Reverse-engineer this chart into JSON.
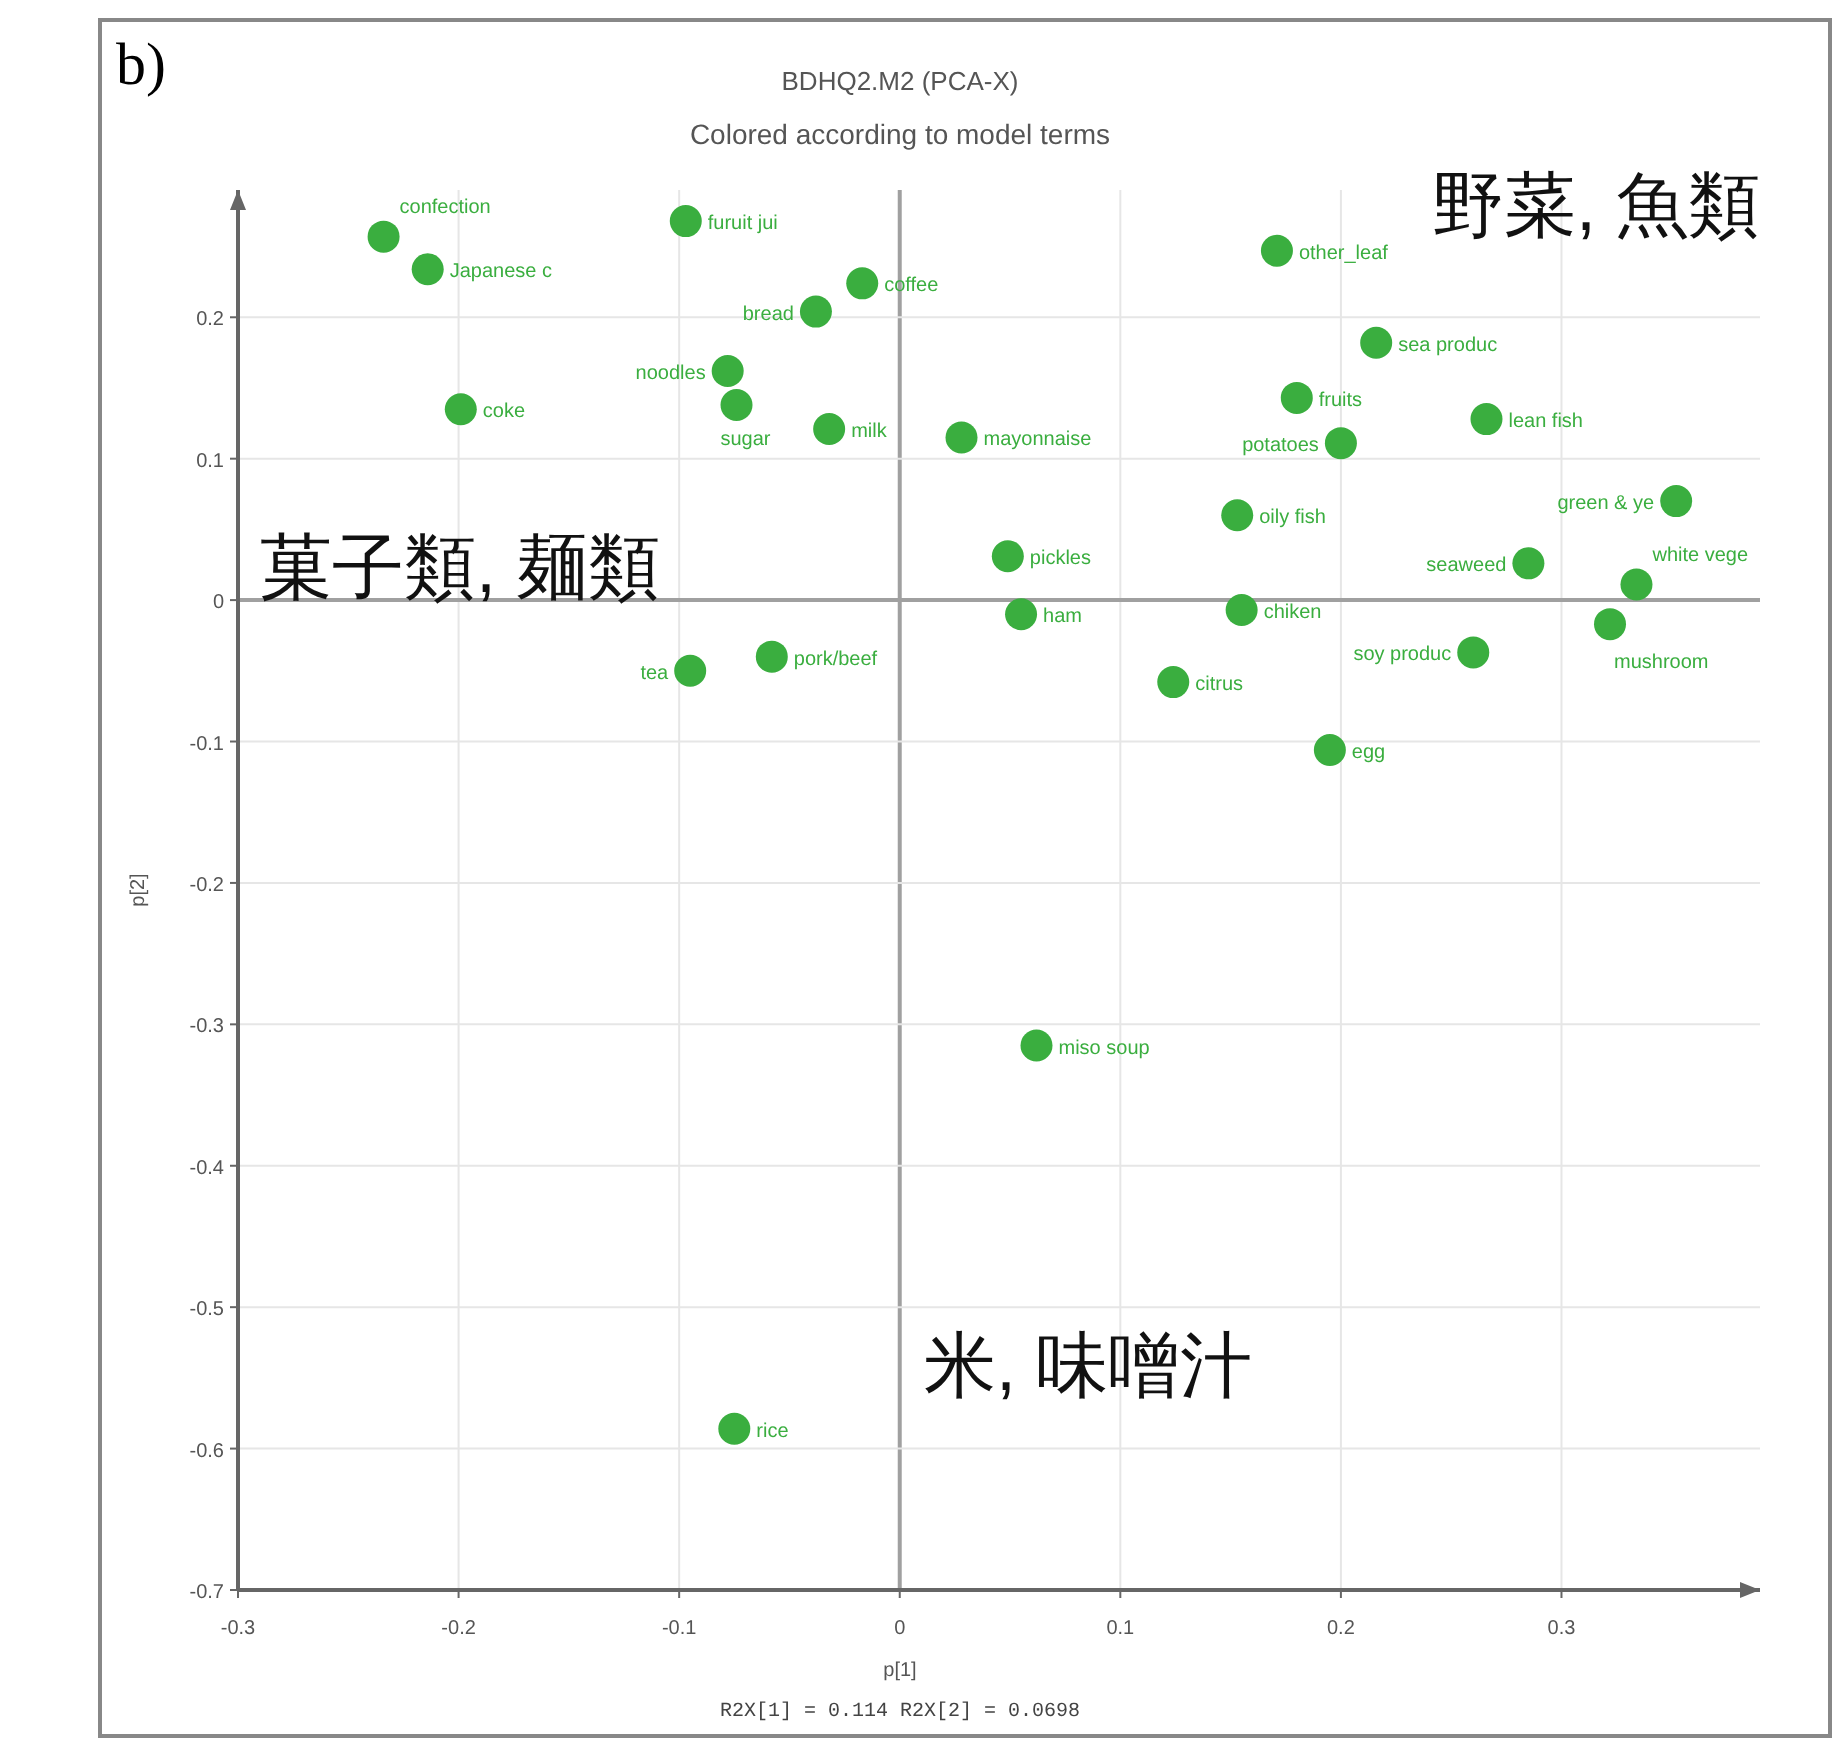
{
  "chart_data": {
    "type": "scatter",
    "title": "BDHQ2.M2 (PCA-X)",
    "subtitle": "Colored according to model terms",
    "xlabel": "p[1]",
    "ylabel": "p[2]",
    "x": [
      -0.234,
      -0.214,
      -0.097,
      -0.017,
      -0.038,
      -0.078,
      -0.074,
      -0.199,
      -0.032,
      0.028,
      0.171,
      0.216,
      0.18,
      0.2,
      0.266,
      0.352,
      0.153,
      0.285,
      0.334,
      0.049,
      0.055,
      0.155,
      0.322,
      0.26,
      0.124,
      0.195,
      -0.095,
      -0.058,
      0.062,
      -0.075
    ],
    "values": [
      0.257,
      0.234,
      0.268,
      0.224,
      0.204,
      0.162,
      0.138,
      0.135,
      0.121,
      0.115,
      0.247,
      0.182,
      0.143,
      0.111,
      0.128,
      0.07,
      0.06,
      0.026,
      0.011,
      0.031,
      -0.01,
      -0.007,
      -0.017,
      -0.037,
      -0.058,
      -0.106,
      -0.05,
      -0.04,
      -0.315,
      -0.586
    ],
    "color": "#3aae3f",
    "marker": "circle",
    "grid": true,
    "xlim": [
      -0.3,
      0.39
    ],
    "ylim": [
      -0.7,
      0.29
    ],
    "xticks": [
      -0.3,
      -0.2,
      -0.1,
      0,
      0.1,
      0.2,
      0.3
    ],
    "yticks": [
      -0.7,
      -0.6,
      -0.5,
      -0.4,
      -0.3,
      -0.2,
      -0.1,
      0,
      0.1,
      0.2
    ],
    "annotations": [
      "b)",
      "野菜, 魚類",
      "菓子類, 麺類",
      "米, 味噌汁",
      "R2X[1] = 0.114   R2X[2] = 0.0698",
      {
        "text": "confection",
        "x": -0.234,
        "y": 0.257
      },
      {
        "text": "Japanese c",
        "x": -0.214,
        "y": 0.234
      },
      {
        "text": "furuit jui",
        "x": -0.097,
        "y": 0.268
      },
      {
        "text": "coffee",
        "x": -0.017,
        "y": 0.224
      },
      {
        "text": "bread",
        "x": -0.038,
        "y": 0.204
      },
      {
        "text": "noodles",
        "x": -0.078,
        "y": 0.162
      },
      {
        "text": "sugar",
        "x": -0.074,
        "y": 0.138
      },
      {
        "text": "coke",
        "x": -0.199,
        "y": 0.135
      },
      {
        "text": "milk",
        "x": -0.032,
        "y": 0.121
      },
      {
        "text": "mayonnaise",
        "x": 0.028,
        "y": 0.115
      },
      {
        "text": "other_leaf",
        "x": 0.171,
        "y": 0.247
      },
      {
        "text": "sea produc",
        "x": 0.216,
        "y": 0.182
      },
      {
        "text": "fruits",
        "x": 0.18,
        "y": 0.143
      },
      {
        "text": "potatoes",
        "x": 0.2,
        "y": 0.111
      },
      {
        "text": "lean fish",
        "x": 0.266,
        "y": 0.128
      },
      {
        "text": "green & ye",
        "x": 0.352,
        "y": 0.07
      },
      {
        "text": "oily fish",
        "x": 0.153,
        "y": 0.06
      },
      {
        "text": "seaweed",
        "x": 0.285,
        "y": 0.026
      },
      {
        "text": "white vege",
        "x": 0.334,
        "y": 0.011
      },
      {
        "text": "pickles",
        "x": 0.049,
        "y": 0.031
      },
      {
        "text": "ham",
        "x": 0.055,
        "y": -0.01
      },
      {
        "text": "chiken",
        "x": 0.155,
        "y": -0.007
      },
      {
        "text": "mushroom",
        "x": 0.322,
        "y": -0.017
      },
      {
        "text": "soy produc",
        "x": 0.26,
        "y": -0.037
      },
      {
        "text": "citrus",
        "x": 0.124,
        "y": -0.058
      },
      {
        "text": "egg",
        "x": 0.195,
        "y": -0.106
      },
      {
        "text": "tea",
        "x": -0.095,
        "y": -0.05
      },
      {
        "text": "pork/beef",
        "x": -0.058,
        "y": -0.04
      },
      {
        "text": "miso soup",
        "x": 0.062,
        "y": -0.315
      },
      {
        "text": "rice",
        "x": -0.075,
        "y": -0.586
      }
    ]
  }
}
